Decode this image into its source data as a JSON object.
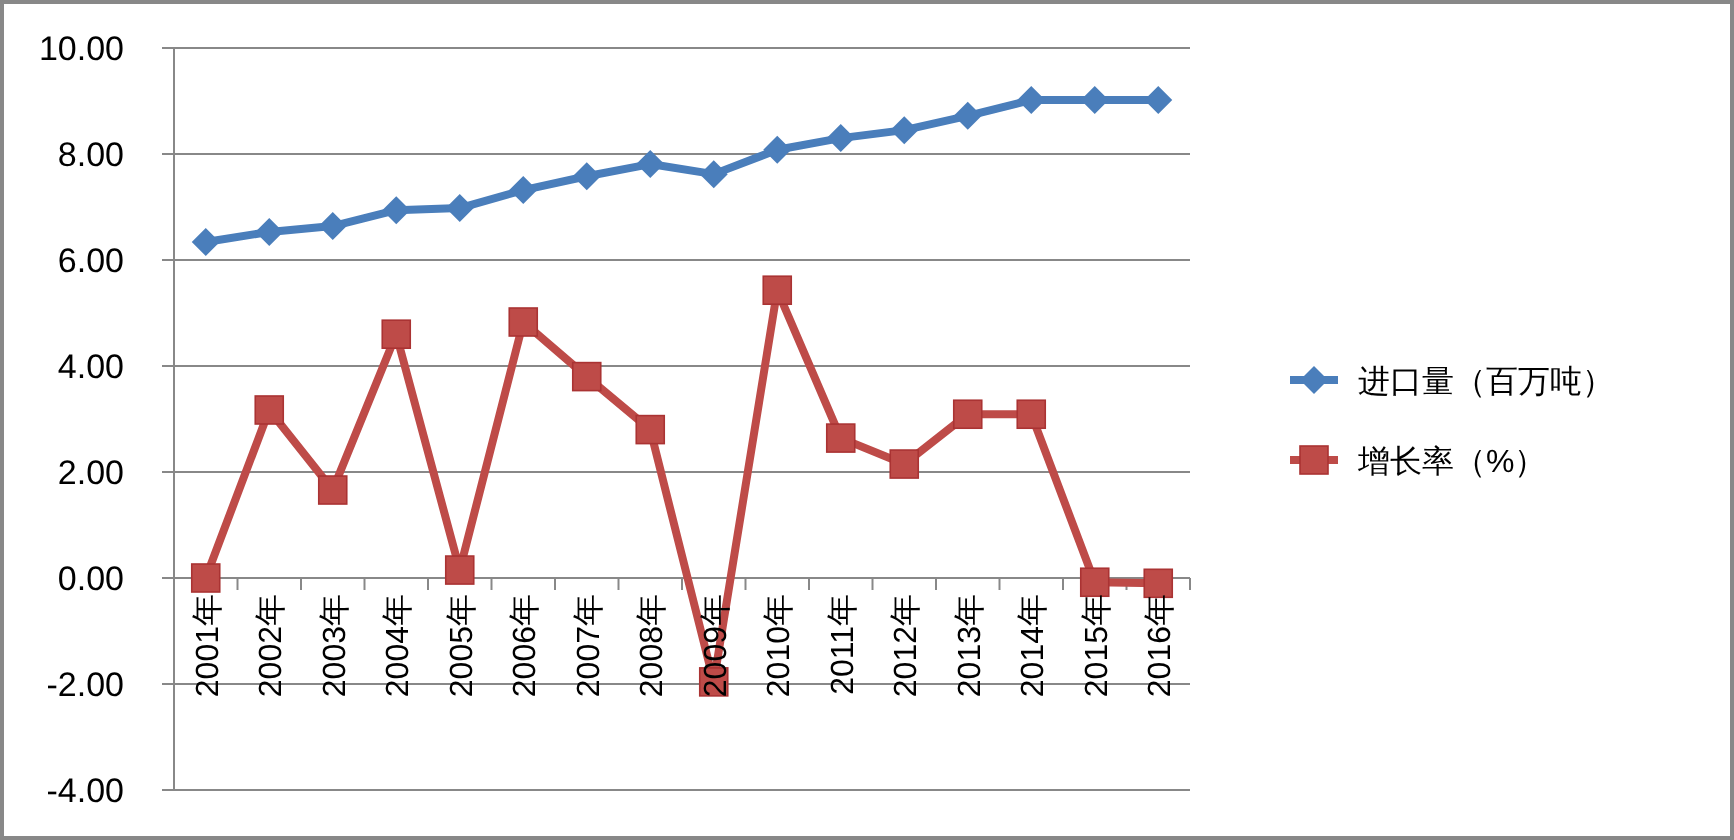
{
  "chart_data": {
    "type": "line",
    "categories": [
      "2001年",
      "2002年",
      "2003年",
      "2004年",
      "2005年",
      "2006年",
      "2007年",
      "2008年",
      "2009年",
      "2010年",
      "2011年",
      "2012年",
      "2013年",
      "2014年",
      "2015年",
      "2016年"
    ],
    "series": [
      {
        "name": "进口量（百万吨）",
        "color": "#4a7ebb",
        "marker": "diamond",
        "values": [
          6.34,
          6.53,
          6.64,
          6.94,
          6.98,
          7.32,
          7.58,
          7.81,
          7.62,
          8.08,
          8.3,
          8.45,
          8.72,
          9.02,
          9.02,
          9.02
        ]
      },
      {
        "name": "增长率（%）",
        "color": "#be4b48",
        "marker": "square",
        "values": [
          0,
          3.17,
          1.66,
          4.6,
          0.15,
          4.83,
          3.8,
          2.8,
          -1.96,
          5.43,
          2.64,
          2.15,
          3.09,
          3.09,
          -0.08,
          -0.1
        ]
      }
    ],
    "ylim": [
      -4,
      10
    ],
    "yticks": [
      {
        "value": -4,
        "label": "-4.00"
      },
      {
        "value": -2,
        "label": "-2.00"
      },
      {
        "value": 0,
        "label": "0.00"
      },
      {
        "value": 2,
        "label": "2.00"
      },
      {
        "value": 4,
        "label": "4.00"
      },
      {
        "value": 6,
        "label": "6.00"
      },
      {
        "value": 8,
        "label": "8.00"
      },
      {
        "value": 10,
        "label": "10.00"
      }
    ],
    "grid": "y",
    "legend": "right",
    "line_style": "solid"
  }
}
